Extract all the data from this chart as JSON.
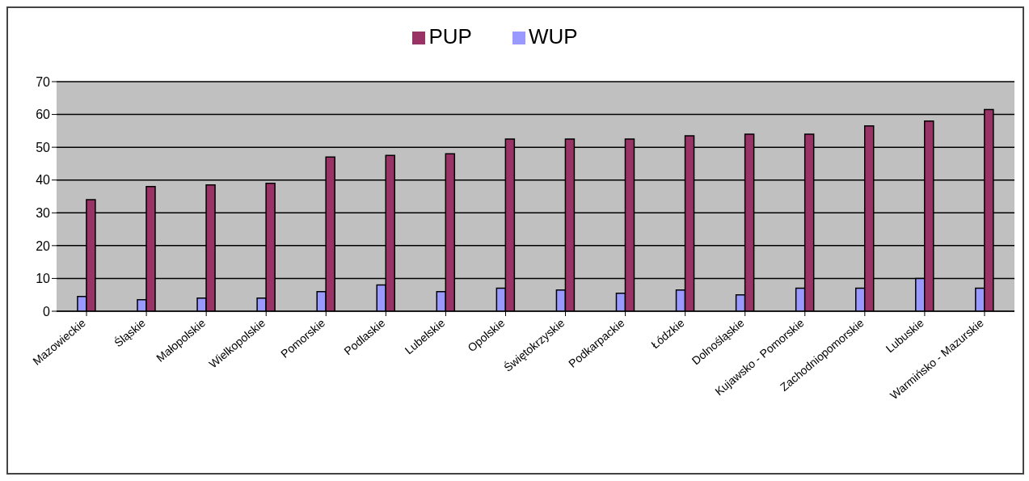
{
  "chart_data": {
    "type": "bar",
    "categories": [
      "Mazowieckie",
      "Śląskie",
      "Małopolskie",
      "Wielkopolskie",
      "Pomorskie",
      "Podlaskie",
      "Lubelskie",
      "Opolskie",
      "Świętokrzyskie",
      "Podkarpackie",
      "Łódzkie",
      "Dolnośląskie",
      "Kujawsko - Pomorskie",
      "Zachodniopomorskie",
      "Lubuskie",
      "Warmińsko - Mazurskie"
    ],
    "series": [
      {
        "name": "WUP",
        "color": "#9999ff",
        "values": [
          4.5,
          3.5,
          4,
          4,
          6,
          8,
          6,
          7,
          6.5,
          5.5,
          6.5,
          5,
          7,
          7,
          10,
          7
        ]
      },
      {
        "name": "PUP",
        "color": "#993366",
        "values": [
          34,
          38,
          38.5,
          39,
          47,
          47.5,
          48,
          52.5,
          52.5,
          52.5,
          53.5,
          54,
          54,
          56.5,
          58,
          61.5
        ]
      }
    ],
    "ylim": [
      0,
      70
    ],
    "yticks": [
      0,
      10,
      20,
      30,
      40,
      50,
      60,
      70
    ],
    "grid": "y",
    "legend": "top"
  }
}
